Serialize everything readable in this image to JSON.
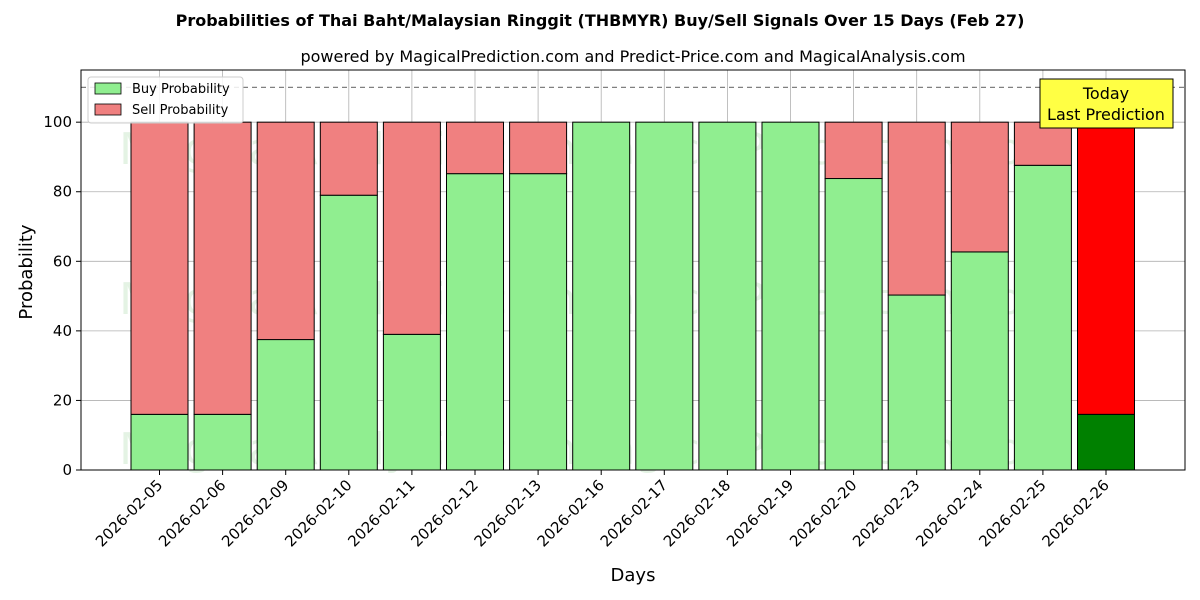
{
  "chart_data": {
    "type": "bar",
    "stacked": true,
    "title": "Probabilities of Thai Baht/Malaysian Ringgit (THBMYR) Buy/Sell Signals Over 15 Days (Feb 27)",
    "subtitle": "powered by MagicalPrediction.com and Predict-Price.com and MagicalAnalysis.com",
    "xlabel": "Days",
    "ylabel": "Probability",
    "ylim": [
      0,
      115
    ],
    "yticks": [
      0,
      20,
      40,
      60,
      80,
      100
    ],
    "grid": true,
    "legend_position": "top-left",
    "reference_line": 110,
    "categories": [
      "2026-02-05",
      "2026-02-06",
      "2026-02-09",
      "2026-02-10",
      "2026-02-11",
      "2026-02-12",
      "2026-02-13",
      "2026-02-16",
      "2026-02-17",
      "2026-02-18",
      "2026-02-19",
      "2026-02-20",
      "2026-02-23",
      "2026-02-24",
      "2026-02-25",
      "2026-02-26"
    ],
    "series": [
      {
        "name": "Buy Probability",
        "color": "#90ee90",
        "values": [
          16,
          16,
          37.5,
          79,
          39,
          85.2,
          85.2,
          100,
          100,
          100,
          100,
          83.8,
          50.3,
          62.7,
          87.6,
          16
        ]
      },
      {
        "name": "Sell Probability",
        "color": "#f08080",
        "values": [
          84,
          84,
          62.5,
          21,
          61,
          14.8,
          14.8,
          0,
          0,
          0,
          0,
          16.2,
          49.7,
          37.3,
          12.4,
          84
        ]
      }
    ],
    "highlight": {
      "index": 15,
      "buy_color": "#008000",
      "sell_color": "#ff0000"
    },
    "annotation": {
      "lines": [
        "Today",
        "Last Prediction"
      ],
      "bg_color": "#ffff44"
    },
    "watermarks": [
      "MagicalAnalysis.com",
      "MagicalPrediction.com"
    ]
  }
}
